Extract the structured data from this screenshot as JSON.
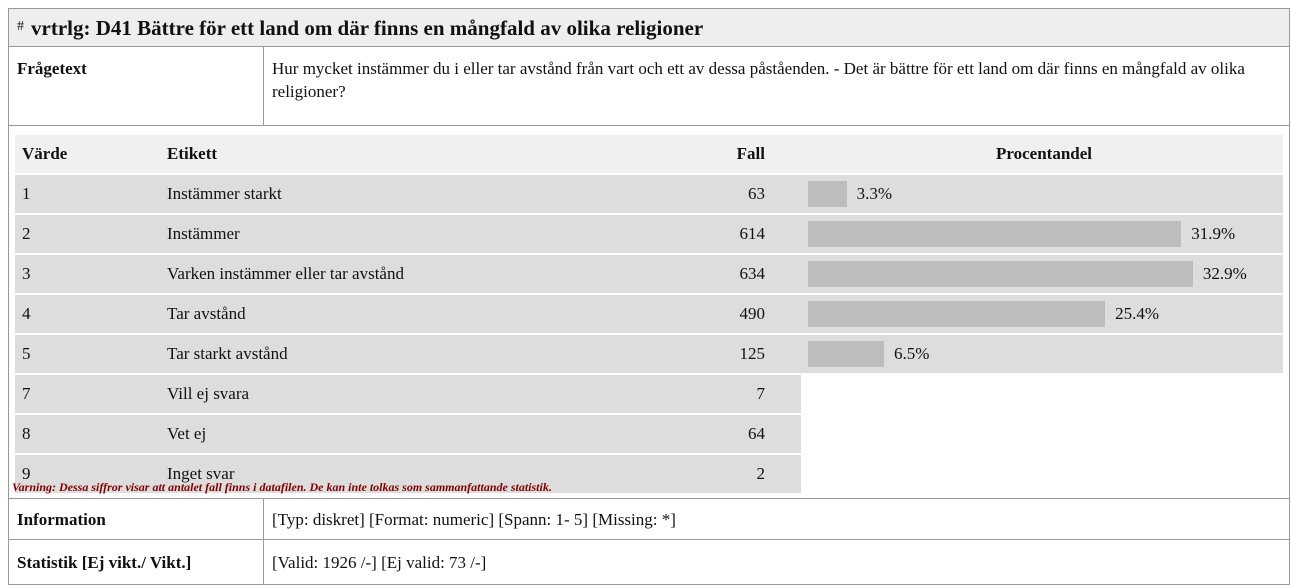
{
  "header": {
    "prefix": "#",
    "title": "vrtrlg: D41 Bättre för ett land om där finns en mångfald av olika religioner"
  },
  "question": {
    "label": "Frågetext",
    "text": "Hur mycket instämmer du i eller tar avstånd från vart och ett av dessa påståenden. - Det är bättre för ett land om där finns en mångfald av olika religioner?"
  },
  "table": {
    "columns": [
      "Värde",
      "Etikett",
      "Fall",
      "Procentandel"
    ],
    "rows": [
      {
        "value": 1,
        "label": "Instämmer starkt",
        "cases": 63,
        "percent": 3.3,
        "percent_label": "3.3%"
      },
      {
        "value": 2,
        "label": "Instämmer",
        "cases": 614,
        "percent": 31.9,
        "percent_label": "31.9%"
      },
      {
        "value": 3,
        "label": "Varken instämmer eller tar avstånd",
        "cases": 634,
        "percent": 32.9,
        "percent_label": "32.9%"
      },
      {
        "value": 4,
        "label": "Tar avstånd",
        "cases": 490,
        "percent": 25.4,
        "percent_label": "25.4%"
      },
      {
        "value": 5,
        "label": "Tar starkt avstånd",
        "cases": 125,
        "percent": 6.5,
        "percent_label": "6.5%"
      },
      {
        "value": 7,
        "label": "Vill ej svara",
        "cases": 7
      },
      {
        "value": 8,
        "label": "Vet ej",
        "cases": 64
      },
      {
        "value": 9,
        "label": "Inget svar",
        "cases": 2
      }
    ]
  },
  "warning": "Varning: Dessa siffror visar att antalet fall finns i datafilen. De kan inte tolkas som sammanfattande statistik.",
  "information": {
    "label": "Information",
    "text": "[Typ: diskret] [Format: numeric] [Spann: 1- 5] [Missing: *]"
  },
  "statistics": {
    "label": "Statistik [Ej vikt./ Vikt.]",
    "text": "[Valid: 1926 /-] [Ej valid: 73 /-]"
  }
}
